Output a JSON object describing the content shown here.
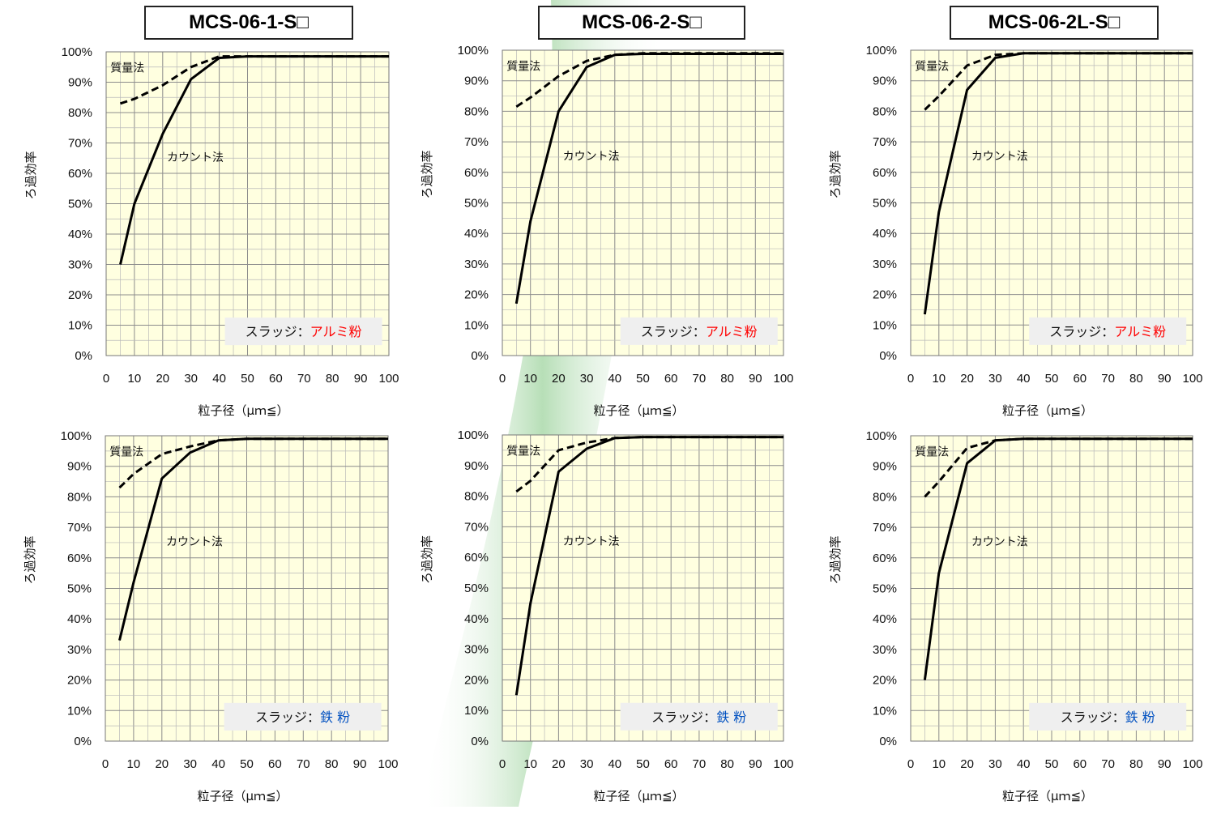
{
  "models": [
    "MCS-06-1-S□",
    "MCS-06-2-S□",
    "MCS-06-2L-S□"
  ],
  "colors": {
    "plot_bg": "#ffffe0",
    "grid": "#a9a9a9",
    "line": "#000000",
    "sludge_alumi": "#ff0000",
    "sludge_iron": "#0050c0",
    "band": "#7cc47c"
  },
  "chart_data": [
    {
      "type": "line",
      "model": "MCS-06-1-S□",
      "xlabel": "粒子径（μｍ≦）",
      "ylabel": "ろ過効率",
      "xlim": [
        0,
        100
      ],
      "ylim": [
        0,
        100
      ],
      "xticks": [
        "0",
        "10",
        "20",
        "30",
        "40",
        "50",
        "60",
        "70",
        "80",
        "90",
        "100"
      ],
      "yticks": [
        "0%",
        "10%",
        "20%",
        "30%",
        "40%",
        "50%",
        "60%",
        "70%",
        "80%",
        "90%",
        "100%"
      ],
      "grid": true,
      "series": [
        {
          "name": "質量法",
          "style": "dashed",
          "x": [
            5,
            10,
            20,
            30,
            40,
            50,
            100
          ],
          "y": [
            83,
            84.5,
            89,
            95,
            98.5,
            98.5,
            98.5
          ]
        },
        {
          "name": "カウント法",
          "style": "solid",
          "x": [
            5,
            10,
            20,
            30,
            40,
            50,
            100
          ],
          "y": [
            30,
            50,
            73,
            91,
            98,
            98.5,
            98.5
          ]
        }
      ],
      "sludge_prefix": "スラッジ：",
      "sludge_material": "アルミ粉",
      "sludge_color": "#ff0000"
    },
    {
      "type": "line",
      "model": "MCS-06-2-S□",
      "xlabel": "粒子径（μｍ≦）",
      "ylabel": "ろ過効率",
      "xlim": [
        0,
        100
      ],
      "ylim": [
        0,
        100
      ],
      "xticks": [
        "0",
        "10",
        "20",
        "30",
        "40",
        "50",
        "60",
        "70",
        "80",
        "90",
        "100"
      ],
      "yticks": [
        "0%",
        "10%",
        "20%",
        "30%",
        "40%",
        "50%",
        "60%",
        "70%",
        "80%",
        "90%",
        "100%"
      ],
      "grid": true,
      "series": [
        {
          "name": "質量法",
          "style": "dashed",
          "x": [
            5,
            10,
            20,
            30,
            40,
            50,
            100
          ],
          "y": [
            81.5,
            84.5,
            91.5,
            96.5,
            98.5,
            99,
            99
          ]
        },
        {
          "name": "カウント法",
          "style": "solid",
          "x": [
            5,
            10,
            20,
            30,
            40,
            50,
            100
          ],
          "y": [
            17,
            44,
            80,
            94.5,
            98.5,
            98.8,
            98.8
          ]
        }
      ],
      "sludge_prefix": "スラッジ：",
      "sludge_material": "アルミ粉",
      "sludge_color": "#ff0000"
    },
    {
      "type": "line",
      "model": "MCS-06-2L-S□",
      "xlabel": "粒子径（μｍ≦）",
      "ylabel": "ろ過効率",
      "xlim": [
        0,
        100
      ],
      "ylim": [
        0,
        100
      ],
      "xticks": [
        "0",
        "10",
        "20",
        "30",
        "40",
        "50",
        "60",
        "70",
        "80",
        "90",
        "100"
      ],
      "yticks": [
        "0%",
        "10%",
        "20%",
        "30%",
        "40%",
        "50%",
        "60%",
        "70%",
        "80%",
        "90%",
        "100%"
      ],
      "grid": true,
      "series": [
        {
          "name": "質量法",
          "style": "dashed",
          "x": [
            5,
            10,
            20,
            30,
            40,
            50,
            100
          ],
          "y": [
            80.5,
            85,
            95,
            98.5,
            99,
            99,
            99
          ]
        },
        {
          "name": "カウント法",
          "style": "solid",
          "x": [
            5,
            10,
            20,
            30,
            40,
            50,
            100
          ],
          "y": [
            13.5,
            47,
            87,
            97.5,
            99,
            99,
            99
          ]
        }
      ],
      "sludge_prefix": "スラッジ：",
      "sludge_material": "アルミ粉",
      "sludge_color": "#ff0000"
    },
    {
      "type": "line",
      "model": "MCS-06-1-S□",
      "xlabel": "粒子径（μｍ≦）",
      "ylabel": "ろ過効率",
      "xlim": [
        0,
        100
      ],
      "ylim": [
        0,
        100
      ],
      "xticks": [
        "0",
        "10",
        "20",
        "30",
        "40",
        "50",
        "60",
        "70",
        "80",
        "90",
        "100"
      ],
      "yticks": [
        "0%",
        "10%",
        "20%",
        "30%",
        "40%",
        "50%",
        "60%",
        "70%",
        "80%",
        "90%",
        "100%"
      ],
      "grid": true,
      "series": [
        {
          "name": "質量法",
          "style": "dashed",
          "x": [
            5,
            10,
            20,
            30,
            40,
            50,
            100
          ],
          "y": [
            83,
            87.5,
            94,
            96.5,
            98.5,
            99,
            99
          ]
        },
        {
          "name": "カウント法",
          "style": "solid",
          "x": [
            5,
            10,
            20,
            30,
            40,
            50,
            100
          ],
          "y": [
            33,
            52,
            86,
            94.5,
            98.5,
            99,
            99
          ]
        }
      ],
      "sludge_prefix": "スラッジ：",
      "sludge_material": "鉄 粉",
      "sludge_color": "#0050c0"
    },
    {
      "type": "line",
      "model": "MCS-06-2-S□",
      "xlabel": "粒子径（μｍ≦）",
      "ylabel": "ろ過効率",
      "xlim": [
        0,
        100
      ],
      "ylim": [
        0,
        100
      ],
      "xticks": [
        "0",
        "10",
        "20",
        "30",
        "40",
        "50",
        "60",
        "70",
        "80",
        "90",
        "100"
      ],
      "yticks": [
        "0%",
        "10%",
        "20%",
        "30%",
        "40%",
        "50%",
        "60%",
        "70%",
        "80%",
        "90%",
        "100%"
      ],
      "grid": true,
      "series": [
        {
          "name": "質量法",
          "style": "dashed",
          "x": [
            5,
            10,
            20,
            30,
            40,
            50,
            100
          ],
          "y": [
            81.5,
            85,
            95,
            97.5,
            99,
            99.3,
            99.3
          ]
        },
        {
          "name": "カウント法",
          "style": "solid",
          "x": [
            5,
            10,
            20,
            30,
            40,
            50,
            100
          ],
          "y": [
            15,
            45,
            88,
            95.5,
            99,
            99.3,
            99.3
          ]
        }
      ],
      "sludge_prefix": "スラッジ：",
      "sludge_material": "鉄 粉",
      "sludge_color": "#0050c0"
    },
    {
      "type": "line",
      "model": "MCS-06-2L-S□",
      "xlabel": "粒子径（μｍ≦）",
      "ylabel": "ろ過効率",
      "xlim": [
        0,
        100
      ],
      "ylim": [
        0,
        100
      ],
      "xticks": [
        "0",
        "10",
        "20",
        "30",
        "40",
        "50",
        "60",
        "70",
        "80",
        "90",
        "100"
      ],
      "yticks": [
        "0%",
        "10%",
        "20%",
        "30%",
        "40%",
        "50%",
        "60%",
        "70%",
        "80%",
        "90%",
        "100%"
      ],
      "grid": true,
      "series": [
        {
          "name": "質量法",
          "style": "dashed",
          "x": [
            5,
            10,
            20,
            30,
            40,
            50,
            100
          ],
          "y": [
            80,
            85,
            96,
            98.5,
            99,
            99,
            99
          ]
        },
        {
          "name": "カウント法",
          "style": "solid",
          "x": [
            5,
            10,
            20,
            30,
            40,
            50,
            100
          ],
          "y": [
            20,
            55,
            91,
            98.5,
            99,
            99,
            99
          ]
        }
      ],
      "sludge_prefix": "スラッジ：",
      "sludge_material": "鉄 粉",
      "sludge_color": "#0050c0"
    }
  ]
}
